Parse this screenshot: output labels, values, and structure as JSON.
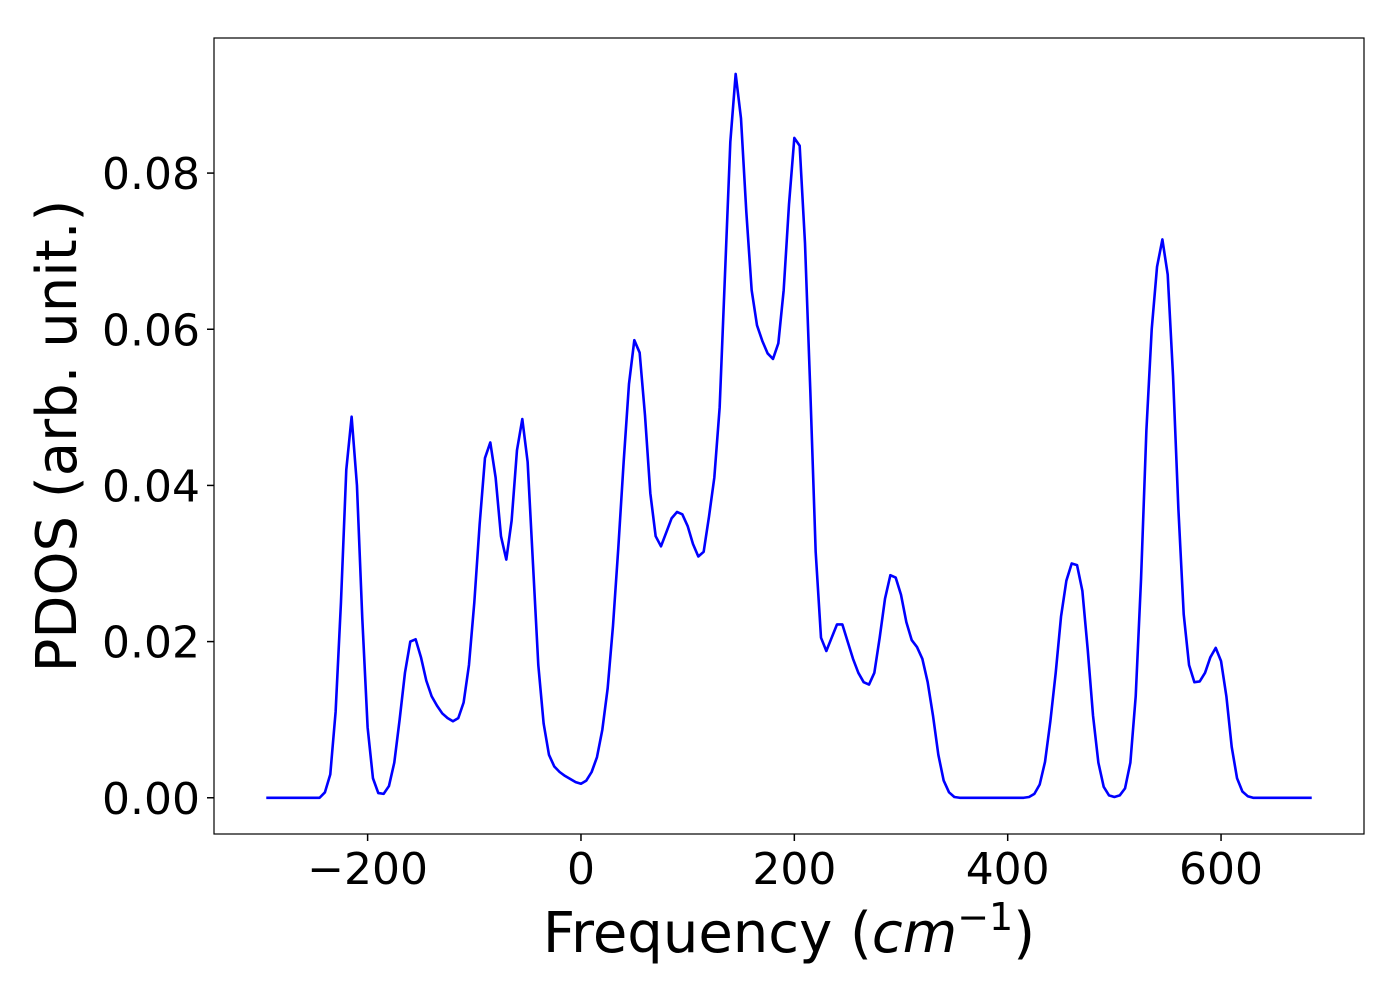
{
  "chart_data": {
    "type": "line",
    "xlabel": [
      "Frequency (",
      "cm",
      "−1",
      ")"
    ],
    "ylabel": "PDOS (arb. unit.)",
    "xlim": [
      -344,
      734
    ],
    "ylim": [
      -0.00464,
      0.0973
    ],
    "xticks": [
      {
        "value": -200,
        "label": "−200"
      },
      0,
      200,
      400,
      600
    ],
    "yticks": [
      {
        "value": 0,
        "label": "0.00"
      },
      {
        "value": 0.02,
        "label": "0.02"
      },
      {
        "value": 0.04,
        "label": "0.04"
      },
      {
        "value": 0.06,
        "label": "0.06"
      },
      {
        "value": 0.08,
        "label": "0.08"
      }
    ],
    "grid": false,
    "x": [
      -295,
      -290,
      -285,
      -280,
      -275,
      -270,
      -265,
      -260,
      -255,
      -250,
      -245,
      -240,
      -235,
      -230,
      -225,
      -220,
      -215,
      -210,
      -205,
      -200,
      -195,
      -190,
      -185,
      -180,
      -175,
      -170,
      -165,
      -160,
      -155,
      -150,
      -145,
      -140,
      -135,
      -130,
      -125,
      -120,
      -115,
      -110,
      -105,
      -100,
      -95,
      -90,
      -85,
      -80,
      -75,
      -70,
      -65,
      -60,
      -55,
      -50,
      -45,
      -40,
      -35,
      -30,
      -25,
      -20,
      -15,
      -10,
      -5,
      0,
      5,
      10,
      15,
      20,
      25,
      30,
      35,
      40,
      45,
      50,
      55,
      60,
      65,
      70,
      75,
      80,
      85,
      90,
      95,
      100,
      105,
      110,
      115,
      120,
      125,
      130,
      135,
      140,
      145,
      150,
      155,
      160,
      165,
      170,
      175,
      180,
      185,
      190,
      195,
      200,
      205,
      210,
      215,
      220,
      225,
      230,
      235,
      240,
      245,
      250,
      255,
      260,
      265,
      270,
      275,
      280,
      285,
      290,
      295,
      300,
      305,
      310,
      315,
      320,
      325,
      330,
      335,
      340,
      345,
      350,
      355,
      360,
      365,
      370,
      375,
      380,
      385,
      390,
      395,
      400,
      405,
      410,
      415,
      420,
      425,
      430,
      435,
      440,
      445,
      450,
      455,
      460,
      465,
      470,
      475,
      480,
      485,
      490,
      495,
      500,
      505,
      510,
      515,
      520,
      525,
      530,
      535,
      540,
      545,
      550,
      555,
      560,
      565,
      570,
      575,
      580,
      585,
      590,
      595,
      600,
      605,
      610,
      615,
      620,
      625,
      630,
      635,
      640,
      645,
      650,
      655,
      660,
      665,
      670,
      675,
      680,
      685
    ],
    "series": [
      {
        "color": "#0000ff",
        "values": [
          0,
          0,
          0,
          0,
          0,
          0,
          0,
          0,
          0,
          0,
          0,
          0.0007,
          0.003,
          0.011,
          0.025,
          0.042,
          0.0488,
          0.04,
          0.023,
          0.009,
          0.0025,
          0.0006,
          0.0005,
          0.0015,
          0.0045,
          0.01,
          0.016,
          0.02,
          0.0203,
          0.018,
          0.015,
          0.013,
          0.0118,
          0.0108,
          0.0102,
          0.0098,
          0.0102,
          0.0122,
          0.017,
          0.025,
          0.035,
          0.0435,
          0.0455,
          0.041,
          0.0335,
          0.0305,
          0.0355,
          0.0445,
          0.0485,
          0.043,
          0.03,
          0.017,
          0.0095,
          0.0055,
          0.004,
          0.0033,
          0.0028,
          0.0024,
          0.002,
          0.0018,
          0.0022,
          0.0033,
          0.0052,
          0.0087,
          0.014,
          0.022,
          0.032,
          0.043,
          0.053,
          0.0586,
          0.057,
          0.049,
          0.039,
          0.0335,
          0.0322,
          0.034,
          0.0358,
          0.0366,
          0.0363,
          0.0348,
          0.0325,
          0.0309,
          0.0315,
          0.036,
          0.041,
          0.05,
          0.067,
          0.084,
          0.0927,
          0.087,
          0.075,
          0.065,
          0.0605,
          0.0585,
          0.0569,
          0.0562,
          0.0582,
          0.065,
          0.076,
          0.0845,
          0.0835,
          0.071,
          0.052,
          0.0315,
          0.0205,
          0.0188,
          0.0205,
          0.0222,
          0.0222,
          0.02,
          0.0178,
          0.016,
          0.0148,
          0.0145,
          0.016,
          0.0205,
          0.0255,
          0.0285,
          0.0282,
          0.026,
          0.0225,
          0.0202,
          0.0193,
          0.0178,
          0.0148,
          0.0105,
          0.0055,
          0.0022,
          0.0007,
          0.0001,
          0,
          0,
          0,
          0,
          0,
          0,
          0,
          0,
          0,
          0,
          0,
          0,
          0,
          0.0001,
          0.0005,
          0.0017,
          0.0046,
          0.0098,
          0.016,
          0.0232,
          0.0278,
          0.03,
          0.0298,
          0.0265,
          0.019,
          0.0105,
          0.0045,
          0.0014,
          0.0003,
          0.0001,
          0.0003,
          0.0012,
          0.0045,
          0.013,
          0.028,
          0.047,
          0.06,
          0.068,
          0.0715,
          0.067,
          0.054,
          0.037,
          0.0235,
          0.017,
          0.0148,
          0.0149,
          0.016,
          0.018,
          0.0192,
          0.0175,
          0.013,
          0.0065,
          0.0025,
          0.0008,
          0.0002,
          0,
          0,
          0,
          0,
          0,
          0,
          0,
          0,
          0,
          0,
          0,
          0
        ]
      }
    ]
  }
}
